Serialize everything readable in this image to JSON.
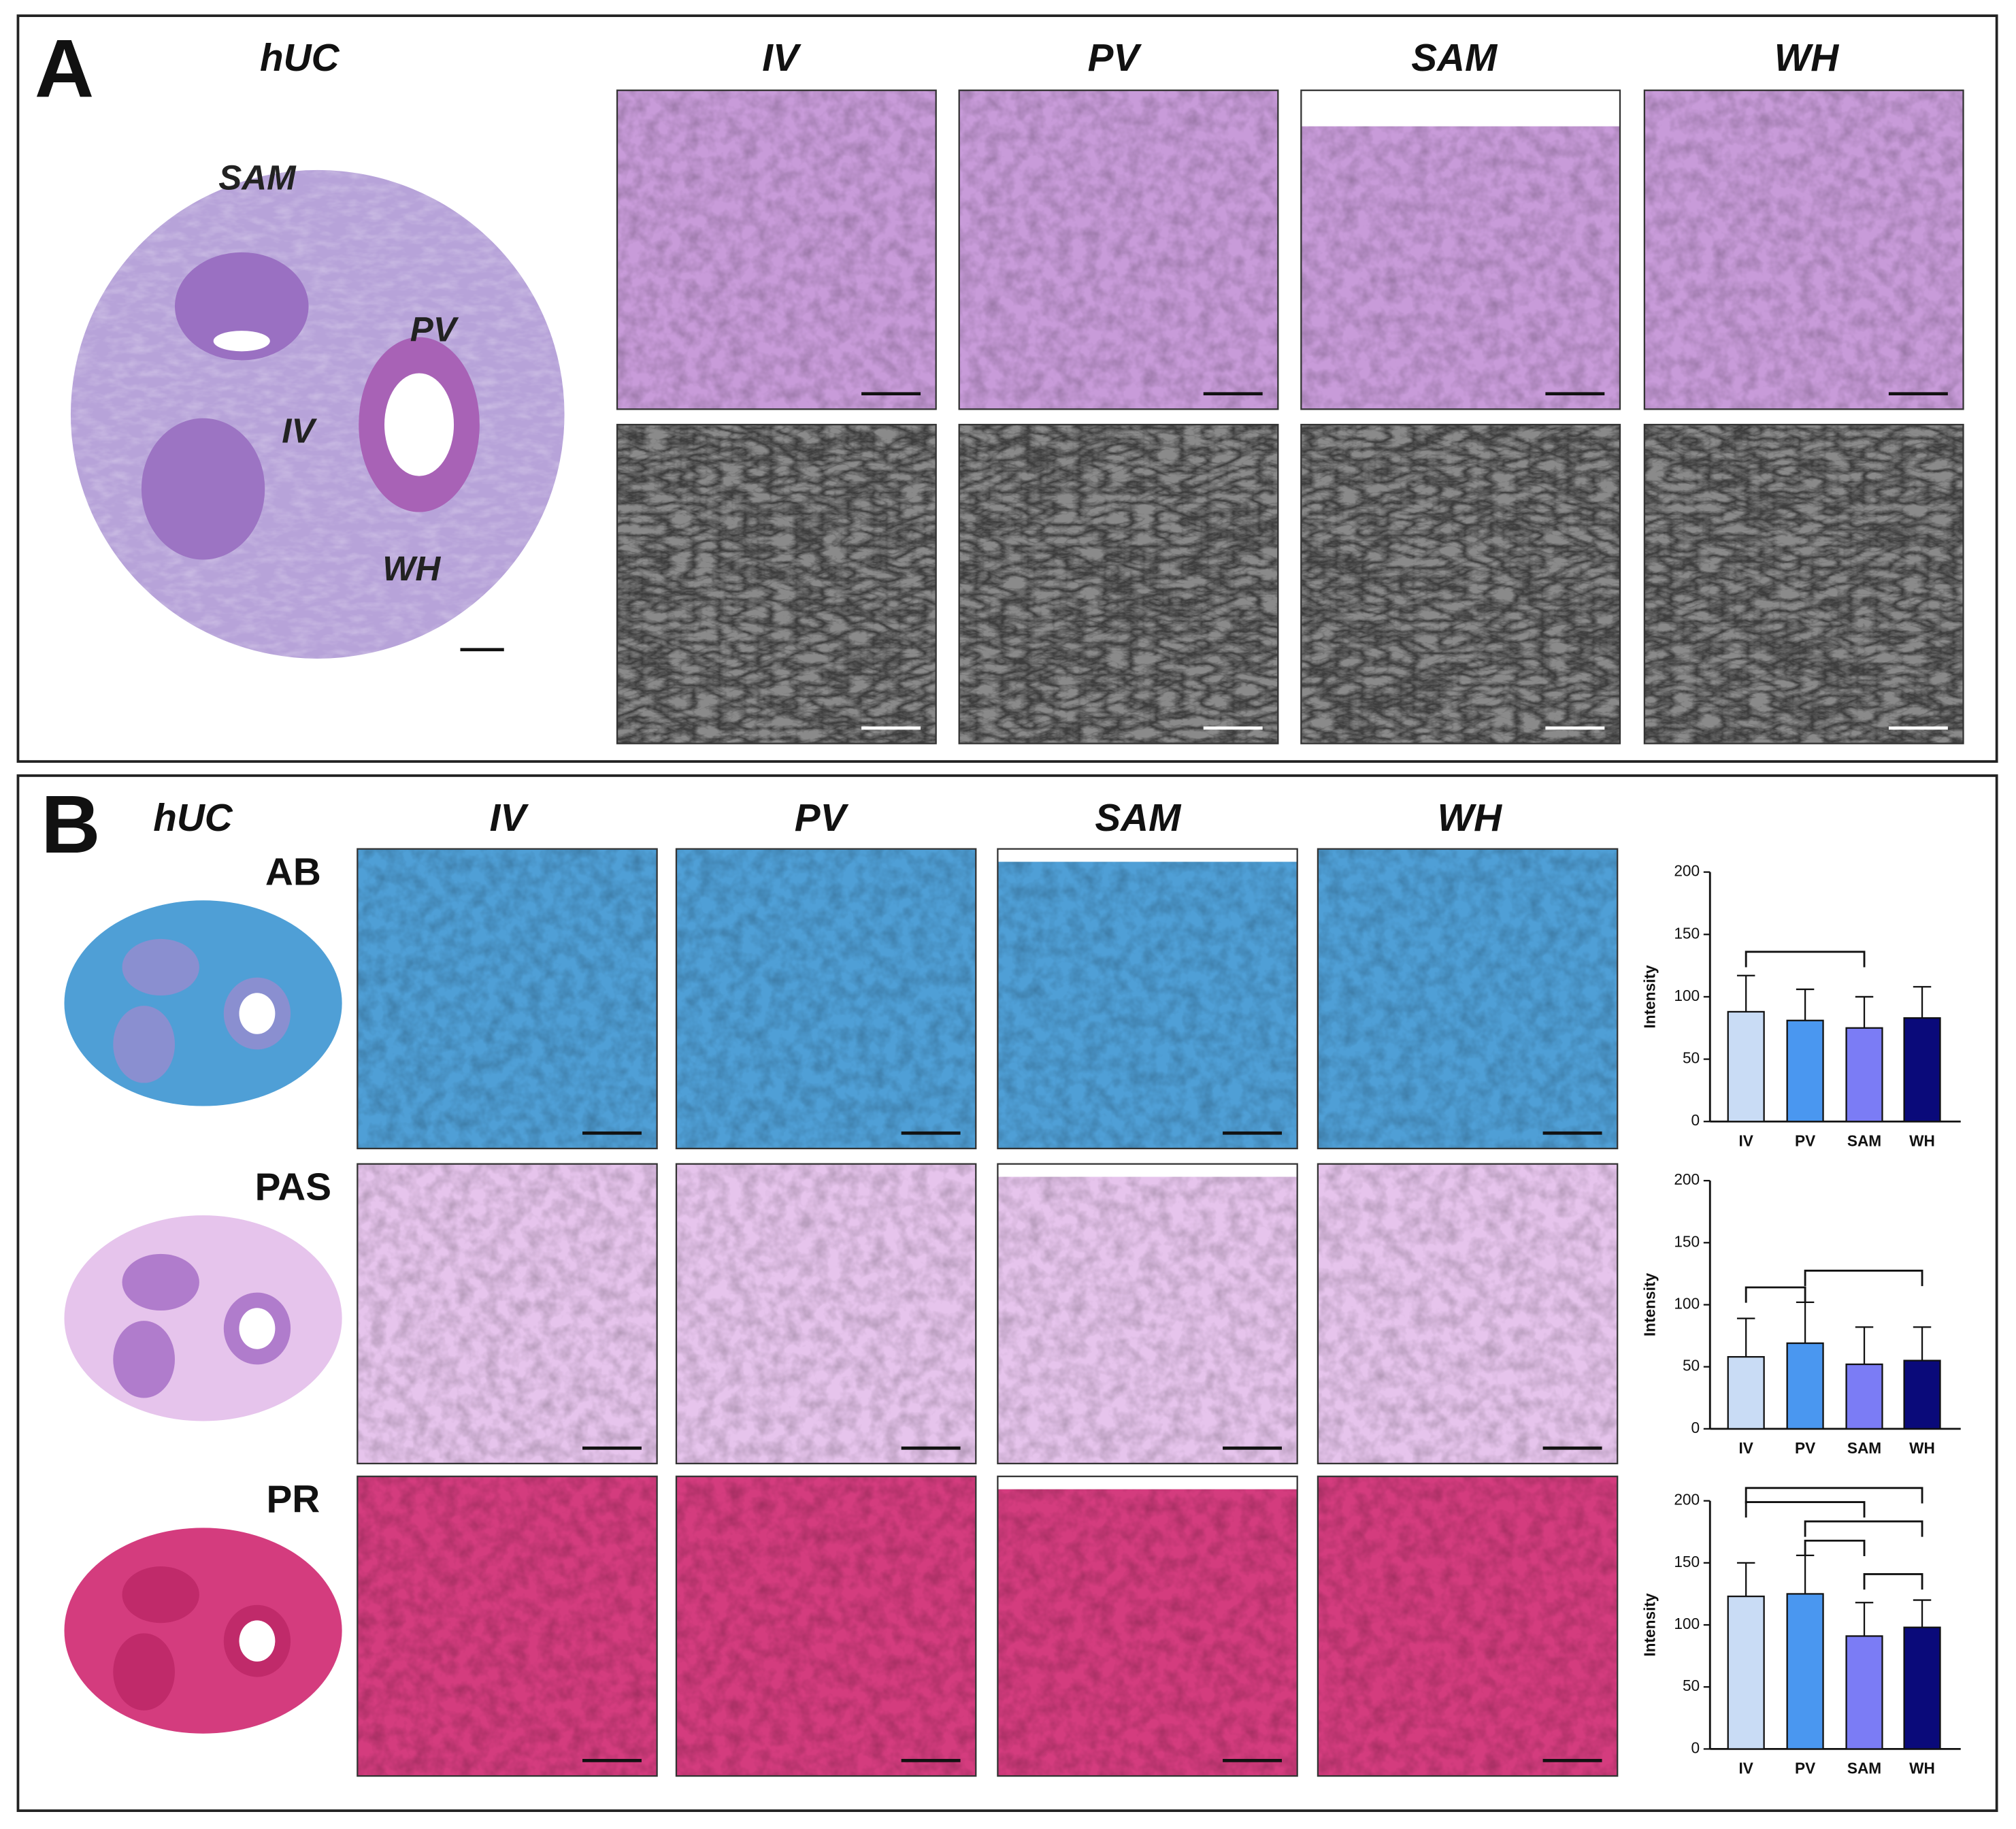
{
  "panel_a": {
    "label": "A",
    "overview_title": "hUC",
    "region_labels": [
      "SAM",
      "PV",
      "IV",
      "WH"
    ],
    "columns": [
      "IV",
      "PV",
      "SAM",
      "WH"
    ]
  },
  "panel_b": {
    "label": "B",
    "overview_title": "hUC",
    "columns": [
      "IV",
      "PV",
      "SAM",
      "WH"
    ],
    "stains": [
      "AB",
      "PAS",
      "PR"
    ]
  },
  "chart_data": [
    {
      "type": "bar",
      "ylabel": "Intensity",
      "categories": [
        "IV",
        "PV",
        "SAM",
        "WH"
      ],
      "values": [
        88,
        81,
        75,
        83
      ],
      "errors": [
        29,
        25,
        25,
        25
      ],
      "colors": [
        "#c9dcf5",
        "#4a97f0",
        "#7b7cf5",
        "#0a0a7a"
      ],
      "ylim": [
        0,
        200
      ],
      "yticks": [
        0,
        50,
        100,
        150,
        200
      ]
    },
    {
      "type": "bar",
      "ylabel": "Intensity",
      "categories": [
        "IV",
        "PV",
        "SAM",
        "WH"
      ],
      "values": [
        58,
        69,
        52,
        55
      ],
      "errors": [
        31,
        33,
        30,
        27
      ],
      "colors": [
        "#c9dcf5",
        "#4a97f0",
        "#7b7cf5",
        "#0a0a7a"
      ],
      "ylim": [
        0,
        200
      ],
      "yticks": [
        0,
        50,
        100,
        150,
        200
      ]
    },
    {
      "type": "bar",
      "ylabel": "Intensity",
      "categories": [
        "IV",
        "PV",
        "SAM",
        "WH"
      ],
      "values": [
        123,
        125,
        91,
        98
      ],
      "errors": [
        27,
        31,
        27,
        22
      ],
      "colors": [
        "#c9dcf5",
        "#4a97f0",
        "#7b7cf5",
        "#0a0a7a"
      ],
      "ylim": [
        0,
        200
      ],
      "yticks": [
        0,
        50,
        100,
        150,
        200
      ]
    }
  ]
}
